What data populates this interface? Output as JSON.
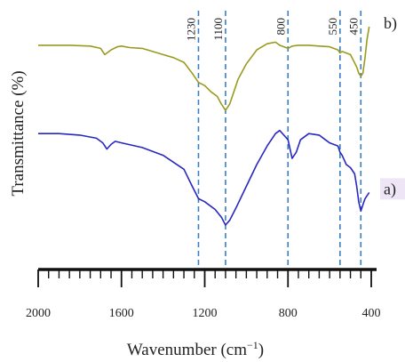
{
  "chart_data": {
    "type": "line",
    "xlabel": "Wavenumber (cm",
    "xlabel_sup": "−1",
    "xlabel_close": ")",
    "ylabel": "Transmittance (%)",
    "xlim": [
      2000,
      400
    ],
    "x_reversed": true,
    "x_ticks": [
      2000,
      1600,
      1200,
      800,
      400
    ],
    "x_tick_labels": [
      "2000",
      "1600",
      "1200",
      "800",
      "400"
    ],
    "grid": false,
    "reference_lines": [
      {
        "x": 1230,
        "label": "1230"
      },
      {
        "x": 1100,
        "label": "1100"
      },
      {
        "x": 800,
        "label": "800"
      },
      {
        "x": 550,
        "label": "550"
      },
      {
        "x": 450,
        "label": "450"
      }
    ],
    "series": [
      {
        "name": "b)",
        "color": "#9a9a1e",
        "y_offset": 0.55,
        "x": [
          2000,
          1850,
          1750,
          1700,
          1680,
          1650,
          1620,
          1600,
          1560,
          1500,
          1450,
          1400,
          1350,
          1300,
          1260,
          1230,
          1200,
          1170,
          1140,
          1120,
          1100,
          1080,
          1060,
          1040,
          1000,
          950,
          900,
          860,
          840,
          820,
          800,
          780,
          750,
          700,
          650,
          600,
          560,
          550,
          540,
          500,
          470,
          460,
          450,
          440,
          430,
          420,
          410
        ],
        "y": [
          0.88,
          0.88,
          0.875,
          0.86,
          0.82,
          0.85,
          0.87,
          0.875,
          0.865,
          0.86,
          0.84,
          0.82,
          0.8,
          0.77,
          0.7,
          0.64,
          0.62,
          0.58,
          0.55,
          0.5,
          0.46,
          0.5,
          0.58,
          0.66,
          0.76,
          0.85,
          0.89,
          0.9,
          0.88,
          0.87,
          0.86,
          0.875,
          0.88,
          0.88,
          0.875,
          0.87,
          0.85,
          0.83,
          0.84,
          0.82,
          0.74,
          0.7,
          0.68,
          0.7,
          0.8,
          0.92,
          1.0
        ]
      },
      {
        "name": "a)",
        "color": "#2828c0",
        "y_offset": 0.0,
        "x": [
          2000,
          1900,
          1800,
          1720,
          1690,
          1670,
          1650,
          1630,
          1600,
          1500,
          1400,
          1300,
          1260,
          1230,
          1200,
          1180,
          1150,
          1120,
          1100,
          1080,
          1050,
          1000,
          950,
          900,
          860,
          840,
          820,
          800,
          780,
          760,
          740,
          700,
          650,
          620,
          600,
          560,
          550,
          540,
          520,
          500,
          480,
          470,
          460,
          450,
          440,
          430,
          420,
          410
        ],
        "y": [
          0.86,
          0.86,
          0.85,
          0.83,
          0.8,
          0.76,
          0.79,
          0.81,
          0.8,
          0.77,
          0.72,
          0.63,
          0.52,
          0.44,
          0.42,
          0.4,
          0.37,
          0.32,
          0.27,
          0.3,
          0.38,
          0.52,
          0.66,
          0.78,
          0.86,
          0.88,
          0.85,
          0.82,
          0.7,
          0.74,
          0.82,
          0.86,
          0.85,
          0.82,
          0.8,
          0.78,
          0.74,
          0.72,
          0.66,
          0.64,
          0.6,
          0.52,
          0.42,
          0.36,
          0.4,
          0.44,
          0.46,
          0.48
        ]
      }
    ]
  }
}
